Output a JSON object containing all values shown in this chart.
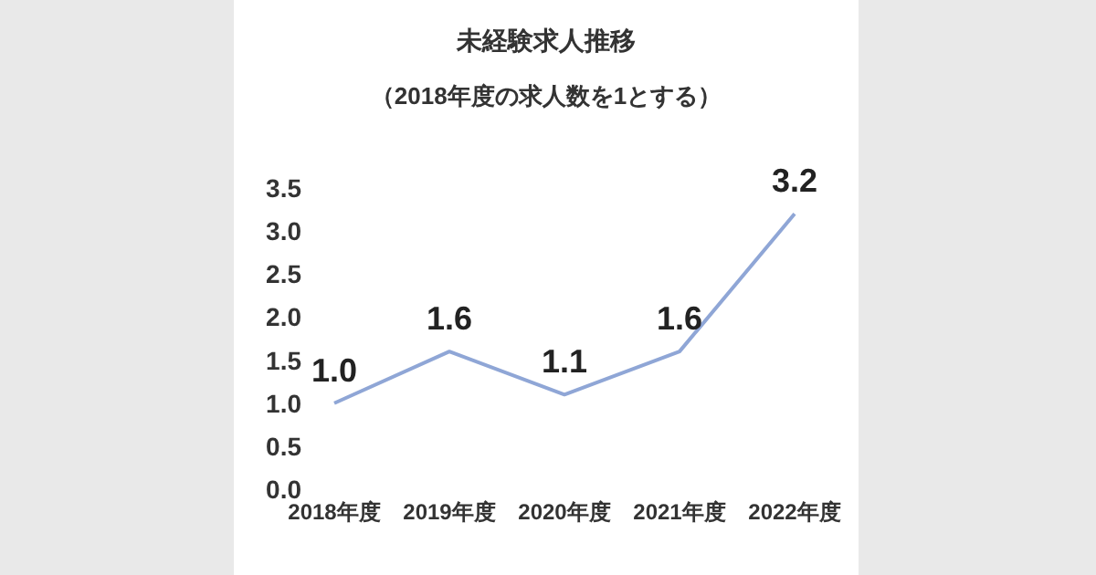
{
  "chart_data": {
    "type": "line",
    "title": "未経験求人推移",
    "subtitle": "（2018年度の求人数を1とする）",
    "categories": [
      "2018年度",
      "2019年度",
      "2020年度",
      "2021年度",
      "2022年度"
    ],
    "series": [
      {
        "color": "#8fa6d6",
        "values": [
          1.0,
          1.6,
          1.1,
          1.6,
          3.2
        ]
      }
    ],
    "ylim": [
      0,
      3.5
    ],
    "yticks": [
      {
        "value": 0,
        "label": "0.0"
      },
      {
        "value": 0.5,
        "label": "0.5"
      },
      {
        "value": 1,
        "label": "1.0"
      },
      {
        "value": 1.5,
        "label": "1.5"
      },
      {
        "value": 2,
        "label": "2.0"
      },
      {
        "value": 2.5,
        "label": "2.5"
      },
      {
        "value": 3,
        "label": "3.0"
      },
      {
        "value": 3.5,
        "label": "3.5"
      }
    ],
    "value_labels": [
      "1.0",
      "1.6",
      "1.1",
      "1.6",
      "3.2"
    ],
    "marker": "none",
    "grid": false
  }
}
